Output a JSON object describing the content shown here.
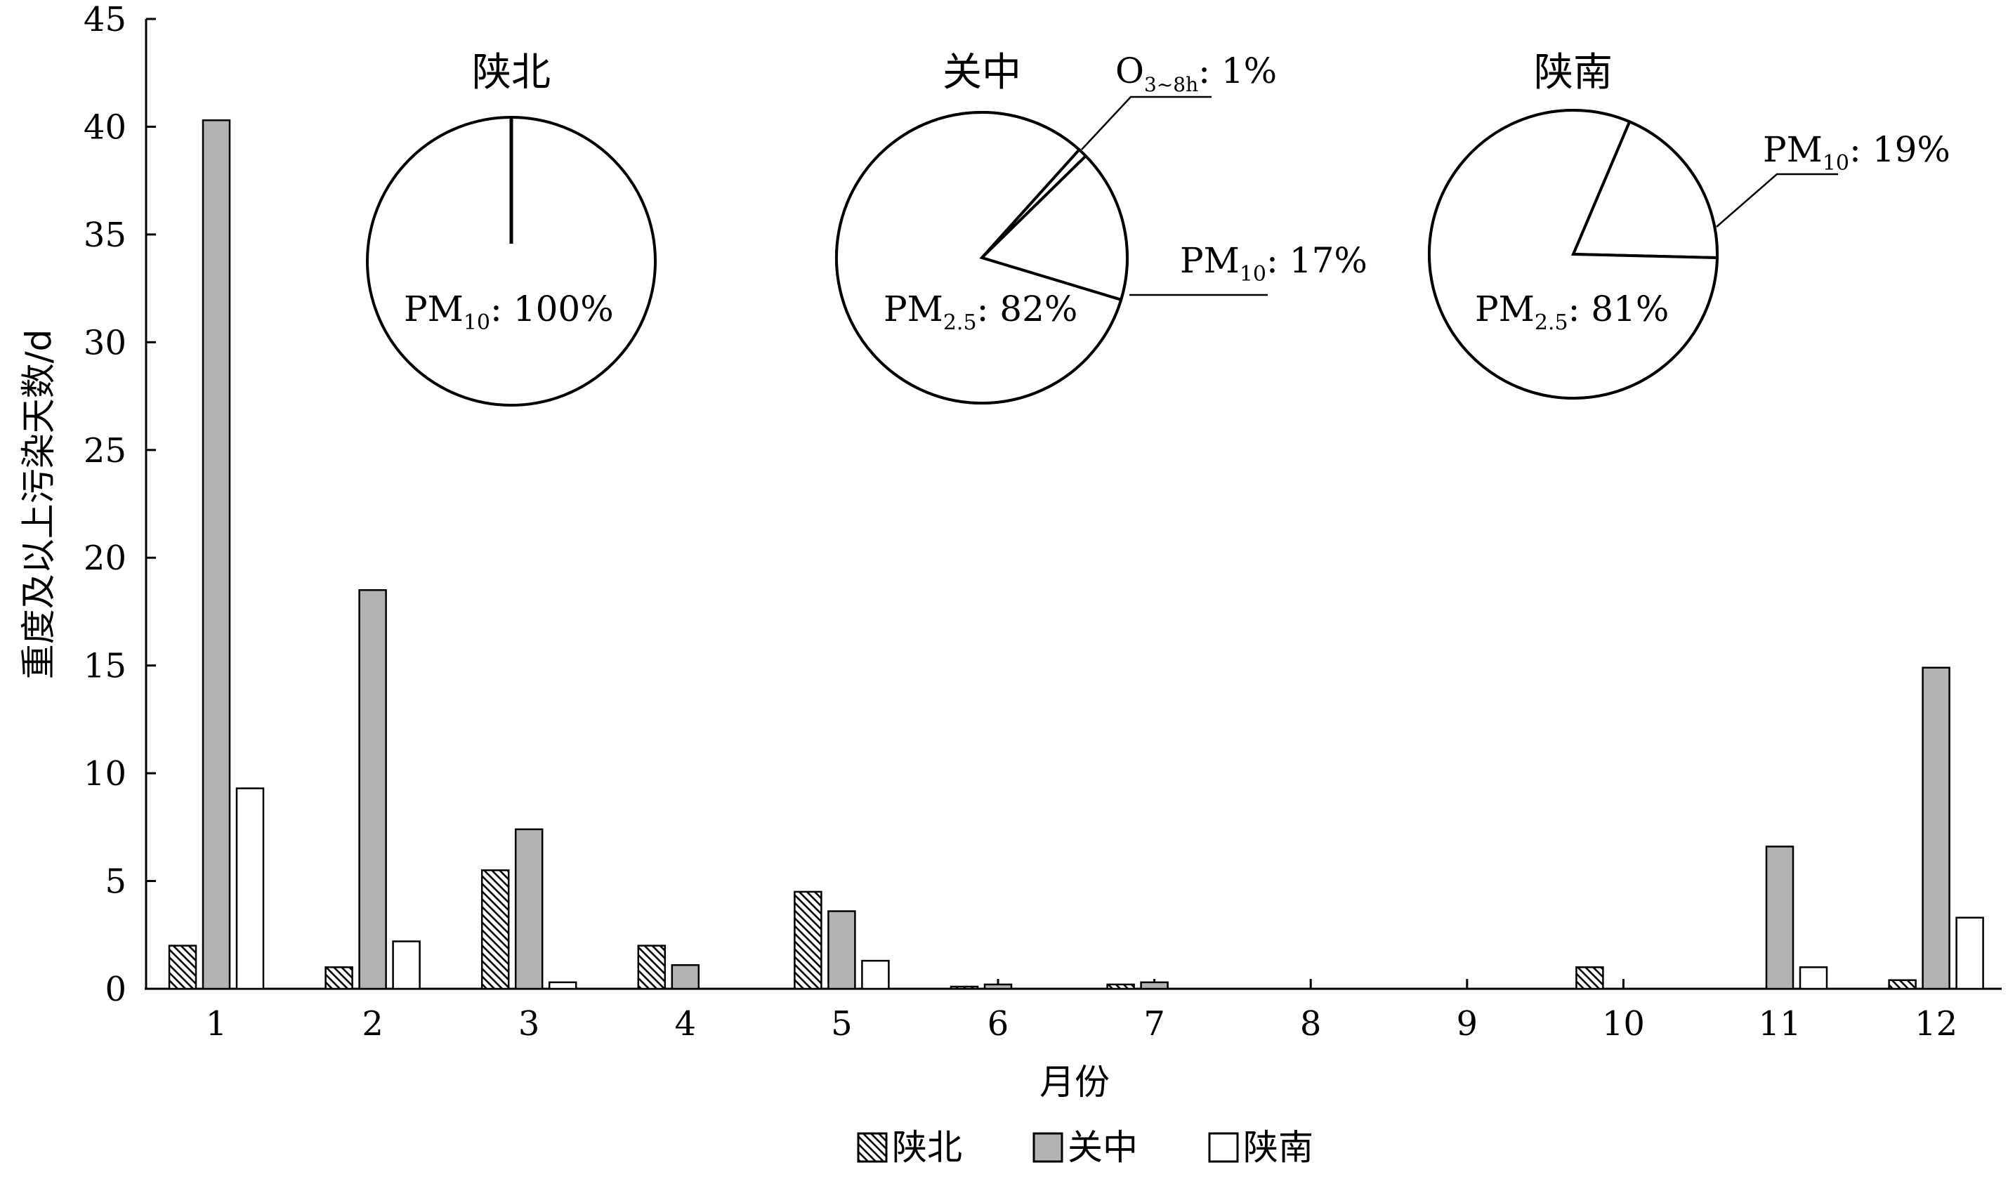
{
  "chart_data": [
    {
      "type": "bar",
      "xlabel": "月份",
      "ylabel": "重度及以上污染天数/d",
      "ylim": [
        0,
        45
      ],
      "yticks": [
        0,
        5,
        10,
        15,
        20,
        25,
        30,
        35,
        40,
        45
      ],
      "categories": [
        "1",
        "2",
        "3",
        "4",
        "5",
        "6",
        "7",
        "8",
        "9",
        "10",
        "11",
        "12"
      ],
      "legend_position": "bottom",
      "grid": false,
      "series": [
        {
          "name": "陕北",
          "pattern": "hatch",
          "color": "#000000",
          "values": [
            2,
            1,
            5.5,
            2,
            4.5,
            0.1,
            0.2,
            0,
            0,
            1,
            0,
            0.4
          ]
        },
        {
          "name": "关中",
          "pattern": "solid",
          "color": "#b3b3b3",
          "values": [
            40.3,
            18.5,
            7.4,
            1.1,
            3.6,
            0.2,
            0.3,
            0,
            0,
            0,
            6.6,
            14.9
          ]
        },
        {
          "name": "陕南",
          "pattern": "solid",
          "color": "#ffffff",
          "values": [
            9.3,
            2.2,
            0.3,
            0,
            1.3,
            0,
            0,
            0,
            0,
            0,
            1,
            3.3
          ]
        }
      ]
    },
    {
      "type": "pie",
      "title": "陕北",
      "slices": [
        {
          "label_main": "PM",
          "label_sub": "10",
          "label_value": ": 100%",
          "value": 100
        }
      ]
    },
    {
      "type": "pie",
      "title": "关中",
      "slices": [
        {
          "label_main": "PM",
          "label_sub": "2.5",
          "label_value": ": 82%",
          "value": 82
        },
        {
          "label_main": "PM",
          "label_sub": "10",
          "label_value": ": 17%",
          "value": 17
        },
        {
          "label_main": "O",
          "label_sub": "3~8h",
          "label_value": ": 1%",
          "value": 1
        }
      ]
    },
    {
      "type": "pie",
      "title": "陕南",
      "slices": [
        {
          "label_main": "PM",
          "label_sub": "2.5",
          "label_value": ": 81%",
          "value": 81
        },
        {
          "label_main": "PM",
          "label_sub": "10",
          "label_value": ": 19%",
          "value": 19
        }
      ]
    }
  ]
}
